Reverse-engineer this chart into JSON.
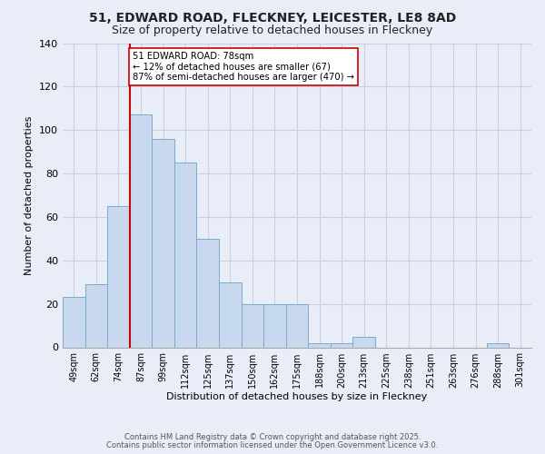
{
  "title1": "51, EDWARD ROAD, FLECKNEY, LEICESTER, LE8 8AD",
  "title2": "Size of property relative to detached houses in Fleckney",
  "xlabel": "Distribution of detached houses by size in Fleckney",
  "ylabel": "Number of detached properties",
  "bin_labels": [
    "49sqm",
    "62sqm",
    "74sqm",
    "87sqm",
    "99sqm",
    "112sqm",
    "125sqm",
    "137sqm",
    "150sqm",
    "162sqm",
    "175sqm",
    "188sqm",
    "200sqm",
    "213sqm",
    "225sqm",
    "238sqm",
    "251sqm",
    "263sqm",
    "276sqm",
    "288sqm",
    "301sqm"
  ],
  "bin_values": [
    23,
    29,
    65,
    107,
    96,
    85,
    50,
    30,
    20,
    20,
    20,
    2,
    2,
    5,
    0,
    0,
    0,
    0,
    0,
    2,
    0
  ],
  "bar_color": "#c8d8ee",
  "bar_edge_color": "#7aaacf",
  "vline_color": "#cc0000",
  "vline_index": 2.5,
  "ylim": [
    0,
    140
  ],
  "yticks": [
    0,
    20,
    40,
    60,
    80,
    100,
    120,
    140
  ],
  "annotation_text": "51 EDWARD ROAD: 78sqm\n← 12% of detached houses are smaller (67)\n87% of semi-detached houses are larger (470) →",
  "annotation_box_facecolor": "#ffffff",
  "annotation_box_edgecolor": "#cc0000",
  "footer1": "Contains HM Land Registry data © Crown copyright and database right 2025.",
  "footer2": "Contains public sector information licensed under the Open Government Licence v3.0.",
  "background_color": "#e8edf8",
  "plot_bg_color": "#e8edf8",
  "grid_color": "#c8cfe0",
  "title_fontsize": 10,
  "subtitle_fontsize": 9,
  "ylabel_fontsize": 8,
  "xlabel_fontsize": 8
}
